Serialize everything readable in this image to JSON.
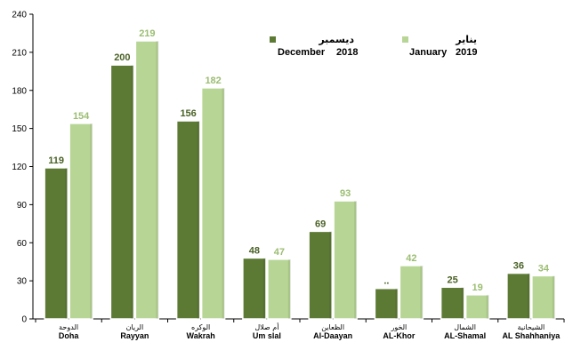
{
  "chart_data": {
    "type": "bar",
    "title": "",
    "xlabel": "",
    "ylabel": "",
    "ylim": [
      0,
      240
    ],
    "yticks": [
      0,
      30,
      60,
      90,
      120,
      150,
      180,
      210,
      240
    ],
    "grid": false,
    "legend_position": "top-right",
    "categories": [
      {
        "en": "Doha",
        "ar": "الدوحة"
      },
      {
        "en": "Rayyan",
        "ar": "الريان"
      },
      {
        "en": "Wakrah",
        "ar": "الوكره"
      },
      {
        "en": "Um slal",
        "ar": "أم صلال"
      },
      {
        "en": "Al-Daayan",
        "ar": "الظعاين"
      },
      {
        "en": "AL-Khor",
        "ar": "الخور"
      },
      {
        "en": "AL-Shamal",
        "ar": "الشمال"
      },
      {
        "en": "AL Shahhaniya",
        "ar": "الشيحانية"
      }
    ],
    "series": [
      {
        "name_ar": "ديسمبر",
        "name_en": "December",
        "year": "2018",
        "color": "#5d7a34",
        "label_color": "#4a6126",
        "values": [
          119,
          200,
          156,
          48,
          69,
          24,
          25,
          36
        ],
        "labels": [
          "119",
          "200",
          "156",
          "48",
          "69",
          "..",
          "25",
          "36"
        ]
      },
      {
        "name_ar": "يناير",
        "name_en": "January",
        "year": "2019",
        "color": "#b7d594",
        "label_color": "#9bbd72",
        "values": [
          154,
          219,
          182,
          47,
          93,
          42,
          19,
          34
        ],
        "labels": [
          "154",
          "219",
          "182",
          "47",
          "93",
          "42",
          "19",
          "34"
        ]
      }
    ]
  }
}
